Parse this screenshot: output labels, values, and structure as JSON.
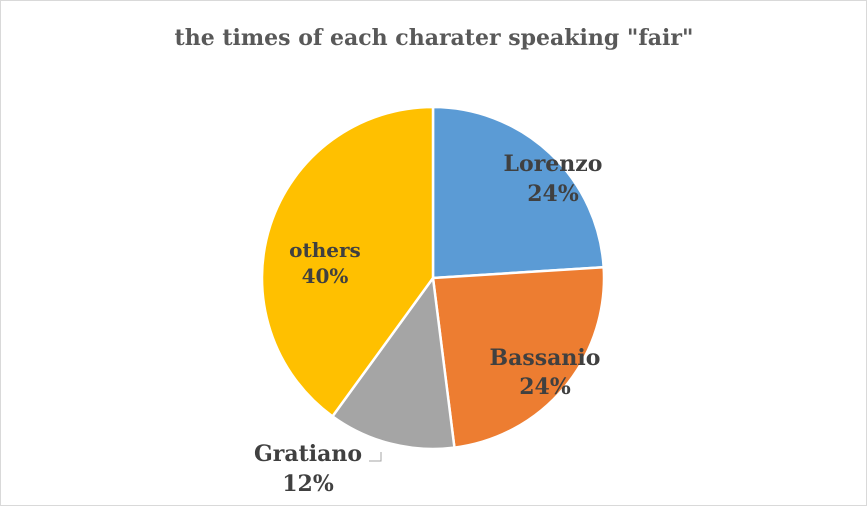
{
  "chart_data": {
    "type": "pie",
    "title": "the times of each charater speaking \"fair\"",
    "slices": [
      {
        "label": "Lorenzo",
        "value": 24,
        "value_text": "24%",
        "color": "#5b9bd5"
      },
      {
        "label": "Bassanio",
        "value": 24,
        "value_text": "24%",
        "color": "#ed7d31"
      },
      {
        "label": "Gratiano",
        "value": 12,
        "value_text": "12%",
        "color": "#a5a5a5"
      },
      {
        "label": "others",
        "value": 40,
        "value_text": "40%",
        "color": "#ffc000"
      }
    ],
    "legend": "none",
    "data_labels": "category and percentage"
  }
}
